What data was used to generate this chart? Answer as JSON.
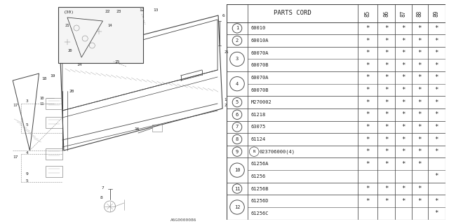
{
  "table_header": "PARTS CORD",
  "col_headers": [
    "85",
    "86",
    "87",
    "88",
    "89"
  ],
  "rows": [
    {
      "num": "1",
      "span": 1,
      "code": "60010",
      "marks": [
        1,
        1,
        1,
        1,
        1
      ],
      "N": false
    },
    {
      "num": "2",
      "span": 1,
      "code": "60010A",
      "marks": [
        1,
        1,
        1,
        1,
        1
      ],
      "N": false
    },
    {
      "num": "3",
      "span": 2,
      "code": "60070A",
      "marks": [
        1,
        1,
        1,
        1,
        1
      ],
      "N": false
    },
    {
      "num": "",
      "span": 0,
      "code": "60070B",
      "marks": [
        1,
        1,
        1,
        1,
        1
      ],
      "N": false
    },
    {
      "num": "4",
      "span": 2,
      "code": "60070A",
      "marks": [
        1,
        1,
        1,
        1,
        1
      ],
      "N": false
    },
    {
      "num": "",
      "span": 0,
      "code": "60070B",
      "marks": [
        1,
        1,
        1,
        1,
        1
      ],
      "N": false
    },
    {
      "num": "5",
      "span": 1,
      "code": "M270002",
      "marks": [
        1,
        1,
        1,
        1,
        1
      ],
      "N": false
    },
    {
      "num": "6",
      "span": 1,
      "code": "61218",
      "marks": [
        1,
        1,
        1,
        1,
        1
      ],
      "N": false
    },
    {
      "num": "7",
      "span": 1,
      "code": "63075",
      "marks": [
        1,
        1,
        1,
        1,
        1
      ],
      "N": false
    },
    {
      "num": "8",
      "span": 1,
      "code": "61124",
      "marks": [
        1,
        1,
        1,
        1,
        1
      ],
      "N": false
    },
    {
      "num": "9",
      "span": 1,
      "code": "023706000(4)",
      "marks": [
        1,
        1,
        1,
        1,
        1
      ],
      "N": true
    },
    {
      "num": "10",
      "span": 2,
      "code": "61256A",
      "marks": [
        1,
        1,
        1,
        1,
        0
      ],
      "N": false
    },
    {
      "num": "",
      "span": 0,
      "code": "61256",
      "marks": [
        0,
        0,
        0,
        0,
        1
      ],
      "N": false
    },
    {
      "num": "11",
      "span": 1,
      "code": "61256B",
      "marks": [
        1,
        1,
        1,
        1,
        0
      ],
      "N": false
    },
    {
      "num": "12",
      "span": 2,
      "code": "61256D",
      "marks": [
        1,
        1,
        1,
        1,
        1
      ],
      "N": false
    },
    {
      "num": "",
      "span": 0,
      "code": "61256C",
      "marks": [
        0,
        0,
        0,
        0,
        1
      ],
      "N": false
    }
  ],
  "watermark": "A6G0000086",
  "bg_color": "#ffffff",
  "text_color": "#222222",
  "line_color": "#444444",
  "gray_color": "#888888"
}
